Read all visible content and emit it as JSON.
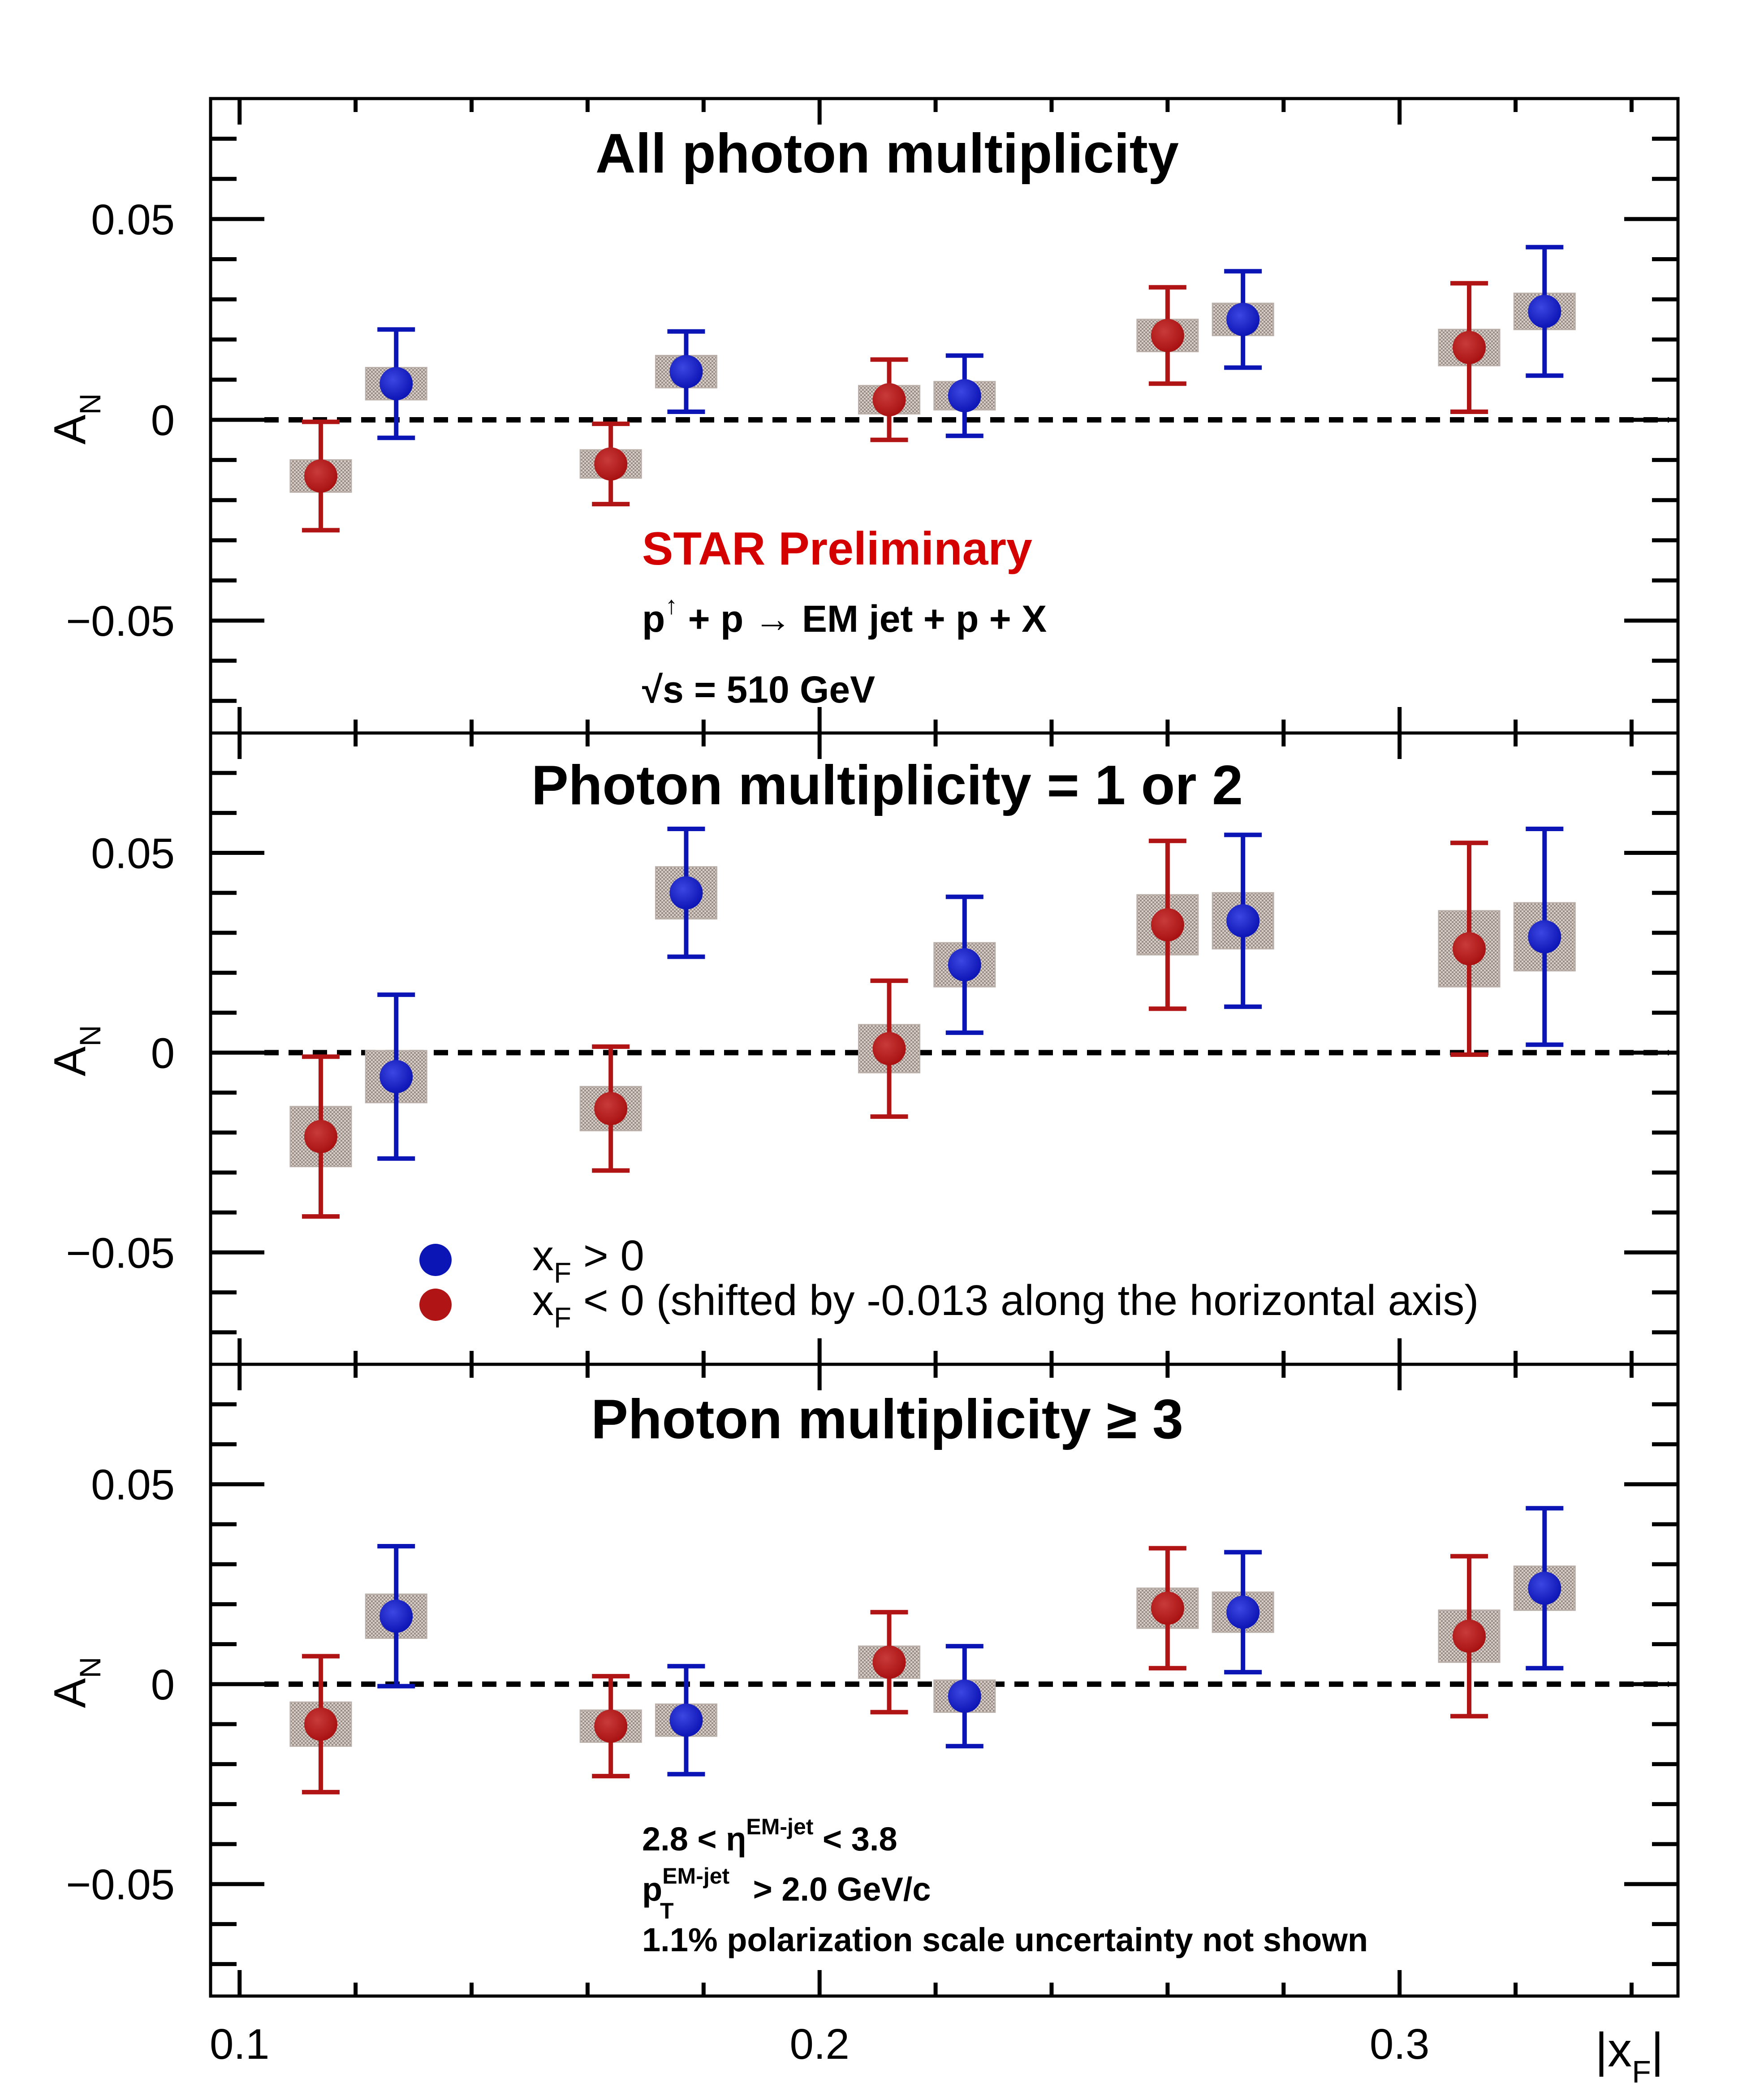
{
  "chart_data": [
    {
      "type": "scatter",
      "title": "All photon multiplicity",
      "ylabel": "A",
      "ylabel_sub": "N",
      "xlim": [
        0.095,
        0.348
      ],
      "ylim": [
        -0.078,
        0.08
      ],
      "yticks": [
        {
          "v": 0.05,
          "label": "0.05"
        },
        {
          "v": 0,
          "label": "0"
        },
        {
          "v": -0.05,
          "label": "−0.05"
        }
      ],
      "series": [
        {
          "color": "#0b14b4",
          "x": [
            0.127,
            0.177,
            0.225,
            0.273,
            0.325
          ],
          "y": [
            0.009,
            0.012,
            0.006,
            0.025,
            0.027
          ],
          "err": [
            0.0135,
            0.01,
            0.01,
            0.012,
            0.016
          ],
          "sys": [
            0.004,
            0.004,
            0.0035,
            0.004,
            0.0045
          ]
        },
        {
          "color": "#b01414",
          "x": [
            0.114,
            0.164,
            0.212,
            0.26,
            0.312
          ],
          "y": [
            -0.014,
            -0.011,
            0.005,
            0.021,
            0.018
          ],
          "err": [
            0.0135,
            0.01,
            0.01,
            0.012,
            0.016
          ],
          "sys": [
            0.004,
            0.0035,
            0.0035,
            0.004,
            0.0045
          ]
        }
      ],
      "annotations": {
        "preliminary": "STAR Preliminary",
        "reaction_a": "p",
        "reaction_sup": "↑",
        "reaction_b": " + p → EM jet + p + X",
        "energy_root": "√",
        "energy": "s = 510 GeV"
      }
    },
    {
      "type": "scatter",
      "title": "Photon multiplicity = 1 or 2",
      "ylabel": "A",
      "ylabel_sub": "N",
      "xlim": [
        0.095,
        0.348
      ],
      "ylim": [
        -0.078,
        0.08
      ],
      "yticks": [
        {
          "v": 0.05,
          "label": "0.05"
        },
        {
          "v": 0,
          "label": "0"
        },
        {
          "v": -0.05,
          "label": "−0.05"
        }
      ],
      "series": [
        {
          "color": "#0b14b4",
          "x": [
            0.127,
            0.177,
            0.225,
            0.273,
            0.325
          ],
          "y": [
            -0.006,
            0.04,
            0.022,
            0.033,
            0.029
          ],
          "err": [
            0.0205,
            0.016,
            0.017,
            0.0215,
            0.027
          ],
          "sys": [
            0.0065,
            0.0065,
            0.0055,
            0.007,
            0.0085
          ]
        },
        {
          "color": "#b01414",
          "x": [
            0.114,
            0.164,
            0.212,
            0.26,
            0.312
          ],
          "y": [
            -0.021,
            -0.014,
            0.001,
            0.032,
            0.026
          ],
          "err": [
            0.02,
            0.0155,
            0.017,
            0.021,
            0.0265
          ],
          "sys": [
            0.0075,
            0.0055,
            0.006,
            0.0075,
            0.0095
          ]
        }
      ],
      "legend": {
        "position": "bottom-left",
        "blue_label": "x",
        "blue_sub": "F",
        "blue_rest": " > 0",
        "red_label": "x",
        "red_sub": "F",
        "red_rest": " < 0 (shifted by -0.013 along the horizontal axis)"
      }
    },
    {
      "type": "scatter",
      "title": "Photon multiplicity ≥ 3",
      "ylabel": "A",
      "ylabel_sub": "N",
      "xlabel": "|x",
      "xlabel_sub": "F",
      "xlabel_end": "|",
      "xlim": [
        0.095,
        0.348
      ],
      "ylim": [
        -0.078,
        0.08
      ],
      "yticks": [
        {
          "v": 0.05,
          "label": "0.05"
        },
        {
          "v": 0,
          "label": "0"
        },
        {
          "v": -0.05,
          "label": "−0.05"
        }
      ],
      "xticks": [
        {
          "v": 0.1,
          "label": "0.1"
        },
        {
          "v": 0.2,
          "label": "0.2"
        },
        {
          "v": 0.3,
          "label": "0.3"
        }
      ],
      "series": [
        {
          "color": "#0b14b4",
          "x": [
            0.127,
            0.177,
            0.225,
            0.273,
            0.325
          ],
          "y": [
            0.017,
            -0.009,
            -0.003,
            0.018,
            0.024
          ],
          "err": [
            0.0175,
            0.0135,
            0.0125,
            0.015,
            0.02
          ],
          "sys": [
            0.0055,
            0.004,
            0.004,
            0.005,
            0.0055
          ]
        },
        {
          "color": "#b01414",
          "x": [
            0.114,
            0.164,
            0.212,
            0.26,
            0.312
          ],
          "y": [
            -0.01,
            -0.0105,
            0.0055,
            0.019,
            0.012
          ],
          "err": [
            0.017,
            0.0125,
            0.0125,
            0.015,
            0.02
          ],
          "sys": [
            0.0055,
            0.004,
            0.004,
            0.005,
            0.0065
          ]
        }
      ],
      "annotations": {
        "cut1_a": "2.8 < η",
        "cut1_sup": "EM-jet",
        "cut1_b": " < 3.8",
        "cut2_a": "p",
        "cut2_sup": "EM-jet",
        "cut2_sub": "T",
        "cut2_b": " > 2.0 GeV/c",
        "note": "1.1% polarization scale uncertainty not shown"
      }
    }
  ]
}
